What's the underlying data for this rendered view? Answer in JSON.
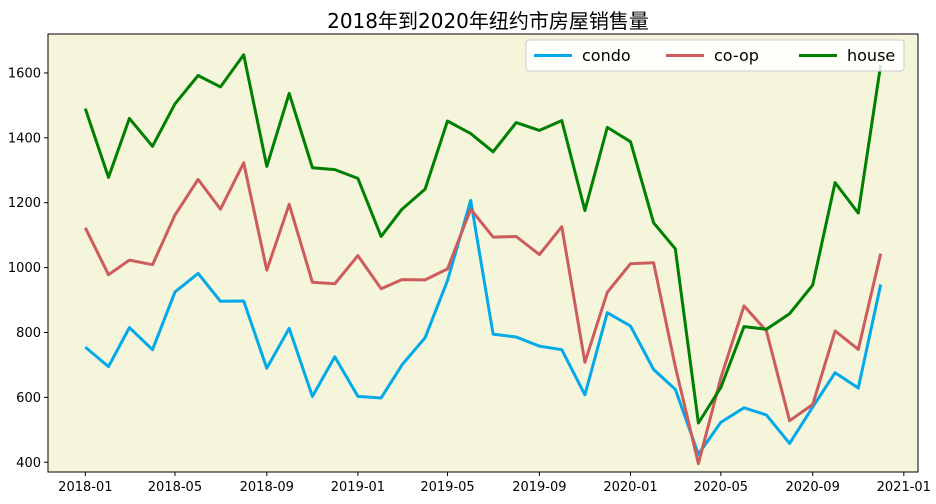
{
  "chart_data": {
    "type": "line",
    "title": "2018年到2020年纽约市房屋销售量",
    "xlabel": "",
    "ylabel": "",
    "x": [
      "2018-01",
      "2018-02",
      "2018-03",
      "2018-04",
      "2018-05",
      "2018-06",
      "2018-07",
      "2018-08",
      "2018-09",
      "2018-10",
      "2018-11",
      "2018-12",
      "2019-01",
      "2019-02",
      "2019-03",
      "2019-04",
      "2019-05",
      "2019-06",
      "2019-07",
      "2019-08",
      "2019-09",
      "2019-10",
      "2019-11",
      "2019-12",
      "2020-01",
      "2020-02",
      "2020-03",
      "2020-04",
      "2020-05",
      "2020-06",
      "2020-07",
      "2020-08",
      "2020-09",
      "2020-10",
      "2020-11",
      "2020-12"
    ],
    "x_ticks": [
      "2018-01",
      "2018-05",
      "2018-09",
      "2019-01",
      "2019-05",
      "2019-09",
      "2020-01",
      "2020-05",
      "2020-09",
      "2021-01"
    ],
    "y_ticks": [
      400,
      600,
      800,
      1000,
      1200,
      1400,
      1600
    ],
    "ylim": [
      370,
      1720
    ],
    "xlim": [
      "2017-11-12",
      "2021-01-20"
    ],
    "grid": false,
    "legend_position": "top-right",
    "background_color": "#f5f5dc",
    "series": [
      {
        "name": "condo",
        "color": "#03a9e8",
        "values": [
          755,
          695,
          815,
          747,
          925,
          982,
          896,
          897,
          690,
          813,
          603,
          725,
          603,
          598,
          700,
          784,
          960,
          1207,
          795,
          786,
          758,
          747,
          608,
          861,
          820,
          686,
          625,
          425,
          523,
          568,
          546,
          458,
          570,
          676,
          629,
          948
        ]
      },
      {
        "name": "co-op",
        "color": "#cd5c5c",
        "values": [
          1123,
          978,
          1023,
          1009,
          1162,
          1272,
          1180,
          1323,
          992,
          1195,
          955,
          950,
          1037,
          935,
          963,
          962,
          996,
          1180,
          1094,
          1096,
          1040,
          1126,
          708,
          924,
          1012,
          1015,
          695,
          396,
          660,
          882,
          805,
          528,
          578,
          805,
          748,
          1043
        ]
      },
      {
        "name": "house",
        "color": "#008000",
        "values": [
          1490,
          1278,
          1460,
          1374,
          1505,
          1592,
          1557,
          1656,
          1312,
          1537,
          1308,
          1302,
          1275,
          1096,
          1180,
          1242,
          1452,
          1413,
          1357,
          1447,
          1423,
          1453,
          1176,
          1432,
          1388,
          1138,
          1058,
          521,
          630,
          818,
          810,
          858,
          946,
          1262,
          1168,
          1625
        ]
      }
    ]
  }
}
